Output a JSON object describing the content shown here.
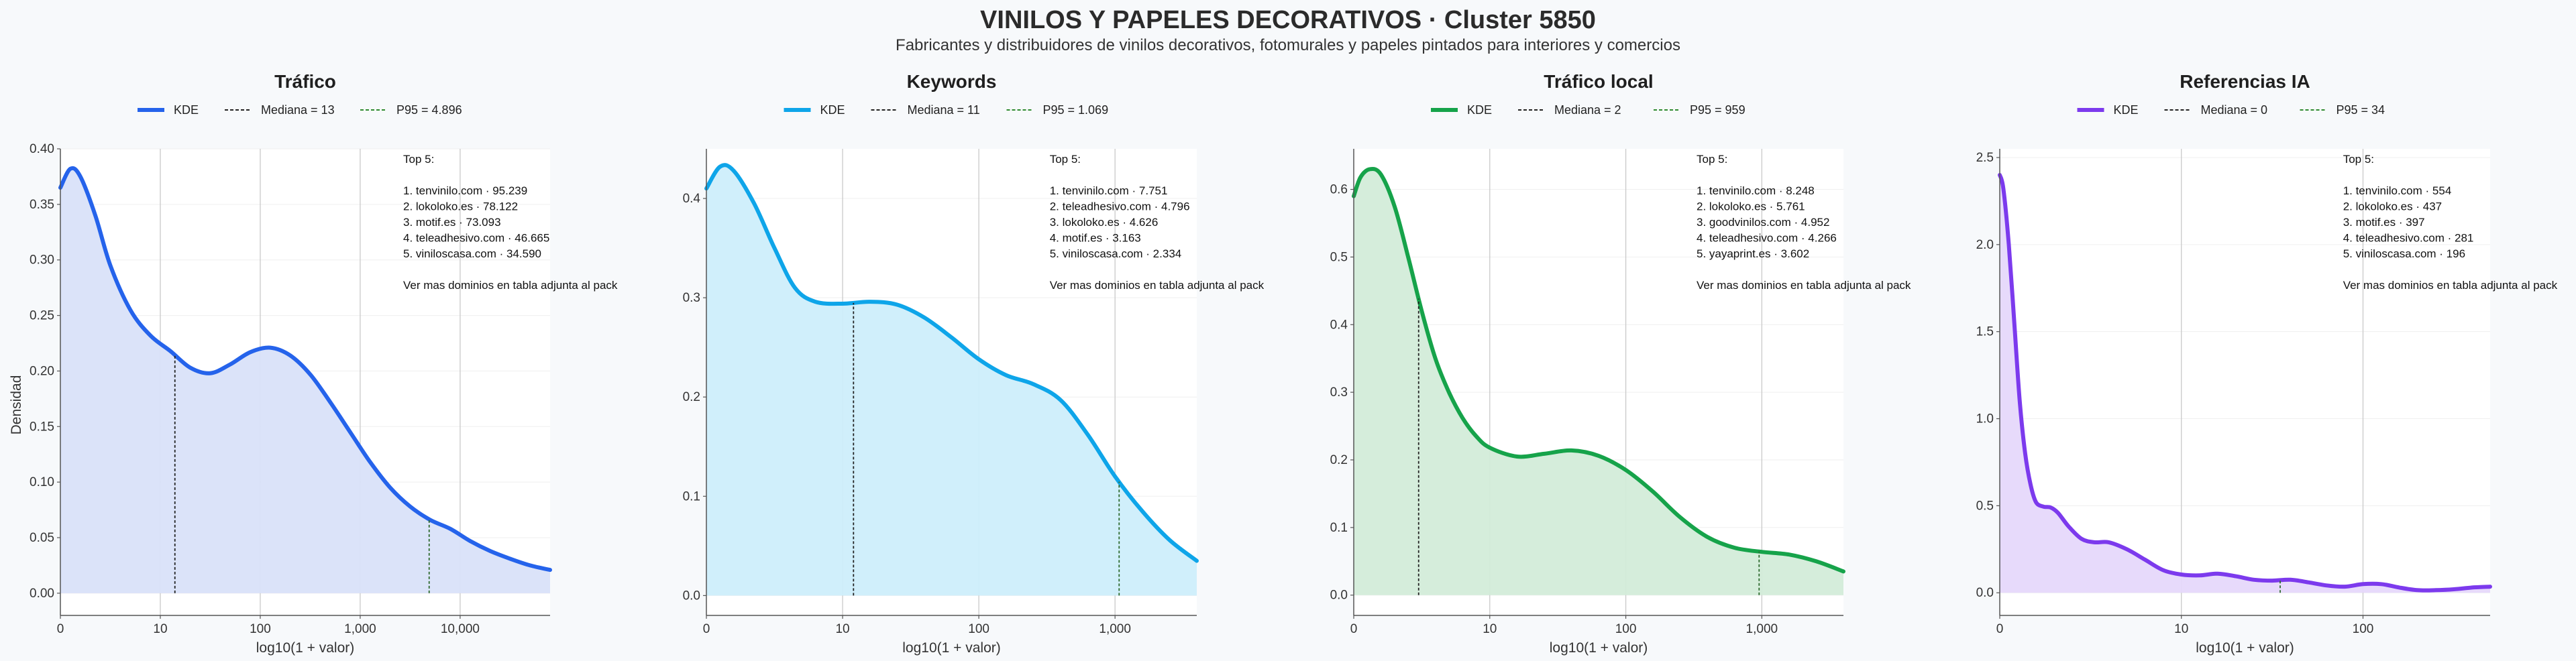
{
  "title": "VINILOS Y PAPELES DECORATIVOS · Cluster 5850",
  "subtitle": "Fabricantes y distribuidores de vinilos decorativos, fotomurales y papeles pintados para interiores y comercios",
  "ylabel_shared": "Densidad",
  "chart_data": [
    {
      "type": "area",
      "title": "Tráfico",
      "color": "#2563eb",
      "fill": "#d9e2f9",
      "xlabel": "log10(1 + valor)",
      "xlim": [
        0,
        4.9
      ],
      "ylim": [
        -0.02,
        0.4
      ],
      "x_ticks": [
        {
          "v": 0,
          "label": "0"
        },
        {
          "v": 1,
          "label": "10"
        },
        {
          "v": 2,
          "label": "100"
        },
        {
          "v": 3,
          "label": "1,000"
        },
        {
          "v": 4,
          "label": "10,000"
        }
      ],
      "y_ticks": [
        {
          "v": 0,
          "label": "0.00"
        },
        {
          "v": 0.05,
          "label": "0.05"
        },
        {
          "v": 0.1,
          "label": "0.10"
        },
        {
          "v": 0.15,
          "label": "0.15"
        },
        {
          "v": 0.2,
          "label": "0.20"
        },
        {
          "v": 0.25,
          "label": "0.25"
        },
        {
          "v": 0.3,
          "label": "0.30"
        },
        {
          "v": 0.35,
          "label": "0.35"
        },
        {
          "v": 0.4,
          "label": "0.40"
        }
      ],
      "legend": {
        "kde": "KDE",
        "median": "Mediana = 13",
        "p95": "P95 = 4.896"
      },
      "median_x": 1.146,
      "p95_x": 3.69,
      "kde": [
        [
          0,
          0.365
        ],
        [
          0.1,
          0.382
        ],
        [
          0.2,
          0.375
        ],
        [
          0.35,
          0.34
        ],
        [
          0.5,
          0.295
        ],
        [
          0.7,
          0.255
        ],
        [
          0.9,
          0.232
        ],
        [
          1.1,
          0.218
        ],
        [
          1.3,
          0.203
        ],
        [
          1.5,
          0.198
        ],
        [
          1.7,
          0.206
        ],
        [
          1.9,
          0.217
        ],
        [
          2.1,
          0.221
        ],
        [
          2.3,
          0.214
        ],
        [
          2.5,
          0.197
        ],
        [
          2.7,
          0.172
        ],
        [
          2.9,
          0.145
        ],
        [
          3.1,
          0.118
        ],
        [
          3.3,
          0.095
        ],
        [
          3.5,
          0.078
        ],
        [
          3.7,
          0.066
        ],
        [
          3.9,
          0.058
        ],
        [
          4.1,
          0.047
        ],
        [
          4.3,
          0.038
        ],
        [
          4.5,
          0.031
        ],
        [
          4.7,
          0.025
        ],
        [
          4.9,
          0.021
        ]
      ],
      "notes": [
        "Top 5:",
        "",
        "1. tenvinilo.com · 95.239",
        "2. lokoloko.es · 78.122",
        "3. motif.es · 73.093",
        "4. teleadhesivo.com · 46.665",
        "5. viniloscasa.com · 34.590",
        "",
        "Ver mas dominios en tabla adjunta al pack"
      ]
    },
    {
      "type": "area",
      "title": "Keywords",
      "color": "#0ea5e9",
      "fill": "#cdeefb",
      "xlabel": "log10(1 + valor)",
      "xlim": [
        0,
        3.6
      ],
      "ylim": [
        -0.02,
        0.45
      ],
      "x_ticks": [
        {
          "v": 0,
          "label": "0"
        },
        {
          "v": 1,
          "label": "10"
        },
        {
          "v": 2,
          "label": "100"
        },
        {
          "v": 3,
          "label": "1,000"
        }
      ],
      "y_ticks": [
        {
          "v": 0,
          "label": "0.0"
        },
        {
          "v": 0.1,
          "label": "0.1"
        },
        {
          "v": 0.2,
          "label": "0.2"
        },
        {
          "v": 0.3,
          "label": "0.3"
        },
        {
          "v": 0.4,
          "label": "0.4"
        }
      ],
      "legend": {
        "kde": "KDE",
        "median": "Mediana = 11",
        "p95": "P95 = 1.069"
      },
      "median_x": 1.08,
      "p95_x": 3.03,
      "kde": [
        [
          0,
          0.41
        ],
        [
          0.1,
          0.432
        ],
        [
          0.2,
          0.428
        ],
        [
          0.35,
          0.395
        ],
        [
          0.5,
          0.35
        ],
        [
          0.65,
          0.31
        ],
        [
          0.8,
          0.296
        ],
        [
          1.0,
          0.294
        ],
        [
          1.2,
          0.296
        ],
        [
          1.4,
          0.293
        ],
        [
          1.6,
          0.28
        ],
        [
          1.8,
          0.26
        ],
        [
          2.0,
          0.238
        ],
        [
          2.2,
          0.222
        ],
        [
          2.4,
          0.213
        ],
        [
          2.6,
          0.197
        ],
        [
          2.8,
          0.162
        ],
        [
          3.0,
          0.12
        ],
        [
          3.2,
          0.085
        ],
        [
          3.4,
          0.056
        ],
        [
          3.6,
          0.035
        ]
      ],
      "notes": [
        "Top 5:",
        "",
        "1. tenvinilo.com · 7.751",
        "2. teleadhesivo.com · 4.796",
        "3. lokoloko.es · 4.626",
        "4. motif.es · 3.163",
        "5. viniloscasa.com · 2.334",
        "",
        "Ver mas dominios en tabla adjunta al pack"
      ]
    },
    {
      "type": "area",
      "title": "Tráfico local",
      "color": "#16a34a",
      "fill": "#d3ecd9",
      "xlabel": "log10(1 + valor)",
      "xlim": [
        0,
        3.6
      ],
      "ylim": [
        -0.03,
        0.66
      ],
      "x_ticks": [
        {
          "v": 0,
          "label": "0"
        },
        {
          "v": 1,
          "label": "10"
        },
        {
          "v": 2,
          "label": "100"
        },
        {
          "v": 3,
          "label": "1,000"
        }
      ],
      "y_ticks": [
        {
          "v": 0,
          "label": "0.0"
        },
        {
          "v": 0.1,
          "label": "0.1"
        },
        {
          "v": 0.2,
          "label": "0.2"
        },
        {
          "v": 0.3,
          "label": "0.3"
        },
        {
          "v": 0.4,
          "label": "0.4"
        },
        {
          "v": 0.5,
          "label": "0.5"
        },
        {
          "v": 0.6,
          "label": "0.6"
        }
      ],
      "legend": {
        "kde": "KDE",
        "median": "Mediana = 2",
        "p95": "P95 = 959"
      },
      "median_x": 0.477,
      "p95_x": 2.98,
      "kde": [
        [
          0,
          0.59
        ],
        [
          0.05,
          0.618
        ],
        [
          0.12,
          0.63
        ],
        [
          0.2,
          0.622
        ],
        [
          0.3,
          0.575
        ],
        [
          0.4,
          0.5
        ],
        [
          0.5,
          0.42
        ],
        [
          0.6,
          0.35
        ],
        [
          0.7,
          0.3
        ],
        [
          0.8,
          0.262
        ],
        [
          0.9,
          0.235
        ],
        [
          1.0,
          0.218
        ],
        [
          1.2,
          0.205
        ],
        [
          1.4,
          0.209
        ],
        [
          1.6,
          0.214
        ],
        [
          1.8,
          0.206
        ],
        [
          2.0,
          0.185
        ],
        [
          2.2,
          0.153
        ],
        [
          2.4,
          0.115
        ],
        [
          2.6,
          0.086
        ],
        [
          2.8,
          0.07
        ],
        [
          3.0,
          0.064
        ],
        [
          3.2,
          0.06
        ],
        [
          3.4,
          0.05
        ],
        [
          3.6,
          0.035
        ]
      ],
      "notes": [
        "Top 5:",
        "",
        "1. tenvinilo.com · 8.248",
        "2. lokoloko.es · 5.761",
        "3. goodvinilos.com · 4.952",
        "4. teleadhesivo.com · 4.266",
        "5. yayaprint.es · 3.602",
        "",
        "Ver mas dominios en tabla adjunta al pack"
      ]
    },
    {
      "type": "area",
      "title": "Referencias IA",
      "color": "#7c3aed",
      "fill": "#e6d8fb",
      "xlabel": "log10(1 + valor)",
      "xlim": [
        0,
        2.7
      ],
      "ylim": [
        -0.13,
        2.55
      ],
      "x_ticks": [
        {
          "v": 0,
          "label": "0"
        },
        {
          "v": 1,
          "label": "10"
        },
        {
          "v": 2,
          "label": "100"
        }
      ],
      "y_ticks": [
        {
          "v": 0,
          "label": "0.0"
        },
        {
          "v": 0.5,
          "label": "0.5"
        },
        {
          "v": 1,
          "label": "1.0"
        },
        {
          "v": 1.5,
          "label": "1.5"
        },
        {
          "v": 2,
          "label": "2.0"
        },
        {
          "v": 2.5,
          "label": "2.5"
        }
      ],
      "legend": {
        "kde": "KDE",
        "median": "Mediana = 0",
        "p95": "P95 = 34"
      },
      "median_x": 0,
      "p95_x": 1.544,
      "kde": [
        [
          0,
          2.4
        ],
        [
          0.02,
          2.32
        ],
        [
          0.05,
          2.0
        ],
        [
          0.08,
          1.55
        ],
        [
          0.11,
          1.1
        ],
        [
          0.14,
          0.8
        ],
        [
          0.17,
          0.62
        ],
        [
          0.2,
          0.52
        ],
        [
          0.24,
          0.495
        ],
        [
          0.28,
          0.49
        ],
        [
          0.32,
          0.46
        ],
        [
          0.38,
          0.38
        ],
        [
          0.45,
          0.31
        ],
        [
          0.52,
          0.29
        ],
        [
          0.6,
          0.29
        ],
        [
          0.7,
          0.25
        ],
        [
          0.8,
          0.19
        ],
        [
          0.9,
          0.13
        ],
        [
          1.0,
          0.105
        ],
        [
          1.1,
          0.1
        ],
        [
          1.2,
          0.11
        ],
        [
          1.3,
          0.095
        ],
        [
          1.4,
          0.075
        ],
        [
          1.5,
          0.07
        ],
        [
          1.6,
          0.075
        ],
        [
          1.7,
          0.06
        ],
        [
          1.8,
          0.042
        ],
        [
          1.9,
          0.035
        ],
        [
          2.0,
          0.05
        ],
        [
          2.1,
          0.05
        ],
        [
          2.2,
          0.03
        ],
        [
          2.3,
          0.015
        ],
        [
          2.4,
          0.015
        ],
        [
          2.5,
          0.02
        ],
        [
          2.6,
          0.03
        ],
        [
          2.7,
          0.035
        ]
      ],
      "notes": [
        "Top 5:",
        "",
        "1. tenvinilo.com · 554",
        "2. lokoloko.es · 437",
        "3. motif.es · 397",
        "4. teleadhesivo.com · 281",
        "5. viniloscasa.com · 196",
        "",
        "Ver mas dominios en tabla adjunta al pack"
      ]
    }
  ]
}
